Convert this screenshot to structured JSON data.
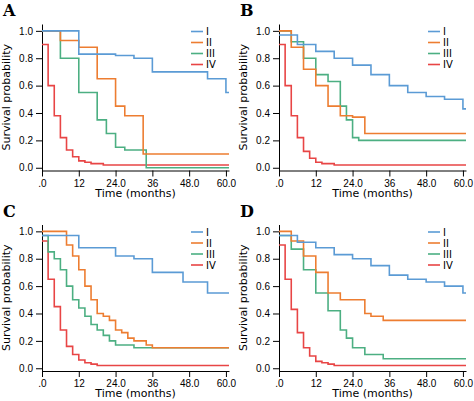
{
  "chart_data": [
    {
      "type": "step",
      "title": "A",
      "x_label": "Time (months)",
      "y_label": "Survival probability",
      "xlim": [
        0,
        61
      ],
      "ylim": [
        -0.02,
        1.05
      ],
      "xticks": [
        {
          "value": 0,
          "label": ".0"
        },
        12,
        {
          "value": 24,
          "label": "24.0"
        },
        36,
        {
          "value": 48,
          "label": "48.0"
        },
        {
          "value": 60,
          "label": "60.0"
        }
      ],
      "yticks": [
        {
          "value": 0,
          "label": "0.0"
        },
        0.2,
        0.4,
        0.6,
        0.8,
        {
          "value": 1,
          "label": "1.0"
        }
      ],
      "legend": "upper-right",
      "series": [
        {
          "name": "IV",
          "color": "#e84545",
          "x": [
            0,
            2,
            4,
            6,
            8,
            10,
            12,
            14,
            16,
            18,
            20,
            22,
            24,
            26,
            28,
            30,
            35,
            61
          ],
          "values": [
            0.9,
            0.6,
            0.38,
            0.22,
            0.13,
            0.08,
            0.05,
            0.04,
            0.03,
            0.03,
            0.02,
            0.02,
            0.02,
            0.02,
            0.02,
            0.02,
            0.02,
            0.02
          ]
        },
        {
          "name": "III",
          "color": "#4caf82",
          "x": [
            0,
            6,
            12,
            18,
            21,
            24,
            27,
            30,
            34,
            61
          ],
          "values": [
            1.0,
            0.8,
            0.55,
            0.35,
            0.25,
            0.15,
            0.13,
            0.13,
            0.0,
            0.0
          ]
        },
        {
          "name": "II",
          "color": "#ed7d31",
          "x": [
            0,
            6,
            12,
            18,
            24,
            27,
            30,
            33,
            34,
            60,
            61
          ],
          "values": [
            1.0,
            0.93,
            0.88,
            0.65,
            0.45,
            0.38,
            0.38,
            0.1,
            0.1,
            0.1,
            0.1
          ]
        },
        {
          "name": "I",
          "color": "#5b9bd5",
          "x": [
            0,
            12,
            24,
            30,
            36,
            54,
            60,
            61
          ],
          "values": [
            1.0,
            0.83,
            0.82,
            0.8,
            0.7,
            0.65,
            0.55,
            0.55
          ]
        }
      ]
    },
    {
      "type": "step",
      "title": "B",
      "x_label": "Time (months)",
      "y_label": "Survival probability",
      "xlim": [
        0,
        61
      ],
      "ylim": [
        -0.02,
        1.05
      ],
      "xticks": [
        {
          "value": 0,
          "label": ".0"
        },
        12,
        {
          "value": 24,
          "label": "24.0"
        },
        36,
        {
          "value": 48,
          "label": "48.0"
        },
        {
          "value": 60,
          "label": "60.0"
        }
      ],
      "yticks": [
        {
          "value": 0,
          "label": "0.0"
        },
        0.2,
        0.4,
        0.6,
        0.8,
        {
          "value": 1,
          "label": "1.0"
        }
      ],
      "legend": "upper-right",
      "series": [
        {
          "name": "IV",
          "color": "#e84545",
          "x": [
            0,
            2,
            4,
            6,
            8,
            10,
            12,
            14,
            16,
            18,
            20,
            22,
            24,
            26,
            30,
            35,
            61
          ],
          "values": [
            0.9,
            0.6,
            0.38,
            0.22,
            0.12,
            0.07,
            0.04,
            0.03,
            0.03,
            0.02,
            0.02,
            0.02,
            0.02,
            0.02,
            0.02,
            0.02,
            0.02
          ]
        },
        {
          "name": "III",
          "color": "#4caf82",
          "x": [
            0,
            4,
            8,
            12,
            16,
            20,
            22,
            24,
            26,
            34,
            61
          ],
          "values": [
            1.0,
            0.92,
            0.8,
            0.68,
            0.63,
            0.45,
            0.35,
            0.22,
            0.2,
            0.2,
            0.2
          ]
        },
        {
          "name": "II",
          "color": "#ed7d31",
          "x": [
            0,
            4,
            8,
            12,
            16,
            20,
            24,
            28,
            30,
            34,
            35,
            61
          ],
          "values": [
            1.0,
            0.88,
            0.72,
            0.6,
            0.45,
            0.38,
            0.37,
            0.25,
            0.25,
            0.25,
            0.25,
            0.25
          ]
        },
        {
          "name": "I",
          "color": "#5b9bd5",
          "x": [
            0,
            6,
            12,
            18,
            24,
            30,
            36,
            42,
            48,
            54,
            60,
            61
          ],
          "values": [
            0.97,
            0.9,
            0.85,
            0.8,
            0.75,
            0.68,
            0.6,
            0.55,
            0.52,
            0.5,
            0.43,
            0.43
          ]
        }
      ]
    },
    {
      "type": "step",
      "title": "C",
      "x_label": "Time (months)",
      "y_label": "Survival probability",
      "xlim": [
        0,
        61
      ],
      "ylim": [
        -0.02,
        1.05
      ],
      "xticks": [
        {
          "value": 0,
          "label": ".0"
        },
        12,
        {
          "value": 24,
          "label": "24.0"
        },
        36,
        {
          "value": 48,
          "label": "48.0"
        },
        {
          "value": 60,
          "label": "60.0"
        }
      ],
      "yticks": [
        {
          "value": 0,
          "label": "0.0"
        },
        0.2,
        0.4,
        0.6,
        0.8,
        {
          "value": 1,
          "label": "1.0"
        }
      ],
      "legend": "upper-right",
      "series": [
        {
          "name": "IV",
          "color": "#e84545",
          "x": [
            0,
            2,
            4,
            6,
            8,
            10,
            12,
            14,
            16,
            18,
            20,
            22,
            24,
            26,
            35,
            61
          ],
          "values": [
            0.93,
            0.65,
            0.45,
            0.28,
            0.16,
            0.1,
            0.06,
            0.04,
            0.03,
            0.02,
            0.02,
            0.02,
            0.02,
            0.02,
            0.02,
            0.02
          ]
        },
        {
          "name": "III",
          "color": "#4caf82",
          "x": [
            0,
            2,
            4,
            6,
            8,
            10,
            12,
            14,
            16,
            18,
            20,
            22,
            24,
            26,
            28,
            30,
            60,
            61
          ],
          "values": [
            0.97,
            0.85,
            0.8,
            0.72,
            0.6,
            0.5,
            0.44,
            0.38,
            0.32,
            0.28,
            0.24,
            0.2,
            0.17,
            0.17,
            0.17,
            0.15,
            0.15,
            0.15
          ]
        },
        {
          "name": "II",
          "color": "#ed7d31",
          "x": [
            0,
            4,
            8,
            10,
            12,
            14,
            16,
            18,
            20,
            22,
            24,
            26,
            28,
            30,
            34,
            36,
            61
          ],
          "values": [
            1.0,
            1.0,
            0.9,
            0.82,
            0.72,
            0.6,
            0.5,
            0.4,
            0.38,
            0.35,
            0.28,
            0.26,
            0.22,
            0.2,
            0.17,
            0.15,
            0.15
          ]
        },
        {
          "name": "I",
          "color": "#5b9bd5",
          "x": [
            0,
            12,
            24,
            30,
            36,
            42,
            46,
            54,
            60,
            61
          ],
          "values": [
            0.97,
            0.88,
            0.82,
            0.8,
            0.7,
            0.7,
            0.63,
            0.55,
            0.55,
            0.55
          ]
        }
      ]
    },
    {
      "type": "step",
      "title": "D",
      "x_label": "Time (months)",
      "y_label": "Survival probability",
      "xlim": [
        0,
        61
      ],
      "ylim": [
        -0.02,
        1.05
      ],
      "xticks": [
        {
          "value": 0,
          "label": ".0"
        },
        12,
        {
          "value": 24,
          "label": "24.0"
        },
        36,
        {
          "value": 48,
          "label": "48.0"
        },
        {
          "value": 60,
          "label": "60.0"
        }
      ],
      "yticks": [
        {
          "value": 0,
          "label": "0.0"
        },
        0.2,
        0.4,
        0.6,
        0.8,
        {
          "value": 1,
          "label": "1.0"
        }
      ],
      "legend": "upper-right",
      "series": [
        {
          "name": "IV",
          "color": "#e84545",
          "x": [
            0,
            2,
            4,
            6,
            8,
            10,
            12,
            14,
            16,
            18,
            20,
            22,
            24,
            26,
            30,
            35,
            61
          ],
          "values": [
            0.9,
            0.65,
            0.43,
            0.26,
            0.15,
            0.09,
            0.05,
            0.04,
            0.03,
            0.02,
            0.02,
            0.02,
            0.02,
            0.02,
            0.02,
            0.02,
            0.02
          ]
        },
        {
          "name": "III",
          "color": "#4caf82",
          "x": [
            0,
            4,
            8,
            12,
            16,
            20,
            22,
            24,
            28,
            30,
            34,
            36,
            61
          ],
          "values": [
            0.97,
            0.87,
            0.72,
            0.55,
            0.42,
            0.28,
            0.22,
            0.15,
            0.1,
            0.1,
            0.07,
            0.07,
            0.07
          ]
        },
        {
          "name": "II",
          "color": "#ed7d31",
          "x": [
            0,
            4,
            8,
            12,
            16,
            20,
            24,
            28,
            30,
            34,
            36,
            61
          ],
          "values": [
            1.0,
            0.93,
            0.82,
            0.7,
            0.55,
            0.5,
            0.5,
            0.4,
            0.38,
            0.35,
            0.35,
            0.35
          ]
        },
        {
          "name": "I",
          "color": "#5b9bd5",
          "x": [
            0,
            6,
            12,
            18,
            24,
            30,
            36,
            42,
            48,
            54,
            60,
            61
          ],
          "values": [
            0.97,
            0.92,
            0.88,
            0.83,
            0.8,
            0.75,
            0.68,
            0.65,
            0.63,
            0.6,
            0.55,
            0.55
          ]
        }
      ]
    }
  ]
}
